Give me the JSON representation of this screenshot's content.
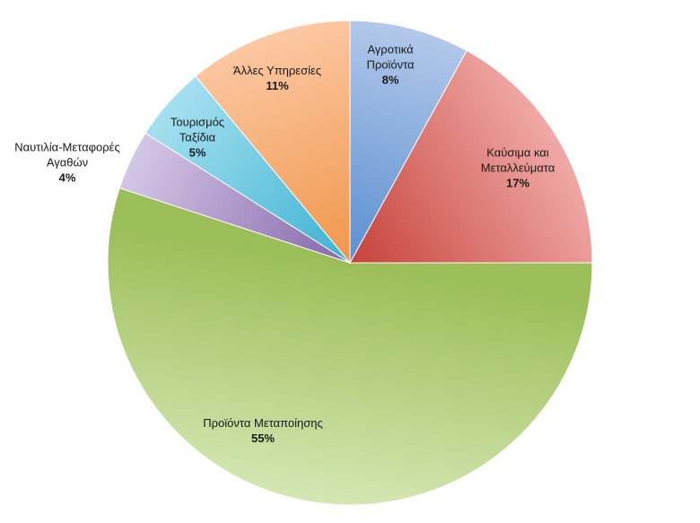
{
  "chart_data": {
    "type": "pie",
    "title": "",
    "start_angle_deg": 0,
    "direction": "clockwise",
    "slices": [
      {
        "name": "Αγροτικά\nΠροϊόντα",
        "pct_label": "8%",
        "value": 8,
        "color_light": "#b3c9ea",
        "color_dark": "#5b8ed0"
      },
      {
        "name": "Καύσιμα και\nΜεταλλεύματα",
        "pct_label": "17%",
        "value": 17,
        "color_light": "#f0aaa7",
        "color_dark": "#c6423b"
      },
      {
        "name": "Προϊόντα Μεταποίησης",
        "pct_label": "55%",
        "value": 55,
        "color_light": "#d5e7b4",
        "color_dark": "#9cbe58"
      },
      {
        "name": "Ναυτιλία-Μεταφορές\nΑγαθών",
        "pct_label": "4%",
        "value": 4,
        "color_light": "#d5c7e6",
        "color_dark": "#8466ab"
      },
      {
        "name": "Τουρισμός\nΤαξίδια",
        "pct_label": "5%",
        "value": 5,
        "color_light": "#a6e0f0",
        "color_dark": "#3bb2d2"
      },
      {
        "name": "Άλλες Υπηρεσίες",
        "pct_label": "11%",
        "value": 11,
        "color_light": "#fcc8a3",
        "color_dark": "#f0964a"
      }
    ]
  }
}
